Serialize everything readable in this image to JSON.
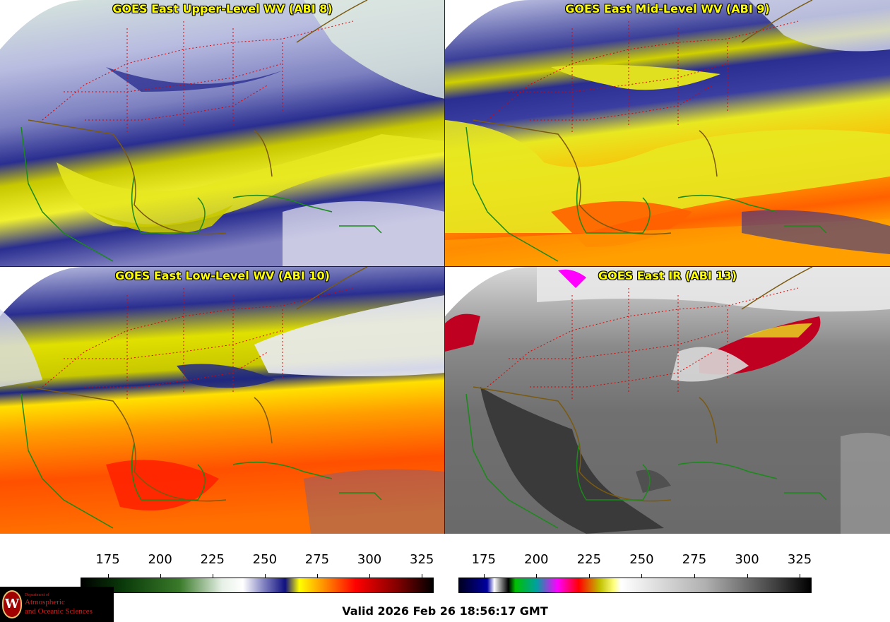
{
  "panels": [
    {
      "id": "upper",
      "title": "GOES East Upper-Level WV (ABI 8)"
    },
    {
      "id": "mid",
      "title": "GOES East Mid-Level WV (ABI 9)"
    },
    {
      "id": "low",
      "title": "GOES East Low-Level WV (ABI 10)"
    },
    {
      "id": "ir",
      "title": "GOES East IR (ABI 13)"
    }
  ],
  "colorbars": [
    {
      "name": "water-vapor",
      "ticks": [
        "175",
        "200",
        "225",
        "250",
        "275",
        "300",
        "325"
      ],
      "range": [
        162,
        330
      ],
      "stops": [
        [
          "0",
          "#000000"
        ],
        [
          "0.12",
          "#0a3a0a"
        ],
        [
          "0.28",
          "#3a7a2a"
        ],
        [
          "0.40",
          "#e6f0e6"
        ],
        [
          "0.46",
          "#ffffff"
        ],
        [
          "0.52",
          "#8080c0"
        ],
        [
          "0.58",
          "#101080"
        ],
        [
          "0.62",
          "#ffff00"
        ],
        [
          "0.70",
          "#ff8000"
        ],
        [
          "0.78",
          "#ff0000"
        ],
        [
          "0.90",
          "#800000"
        ],
        [
          "1",
          "#000000"
        ]
      ]
    },
    {
      "name": "infrared",
      "ticks": [
        "175",
        "200",
        "225",
        "250",
        "275",
        "300",
        "325"
      ],
      "range": [
        163,
        330
      ],
      "stops": [
        [
          "0",
          "#000020"
        ],
        [
          "0.08",
          "#0000a0"
        ],
        [
          "0.10",
          "#ffffff"
        ],
        [
          "0.14",
          "#000000"
        ],
        [
          "0.16",
          "#00c000"
        ],
        [
          "0.22",
          "#00a0a0"
        ],
        [
          "0.28",
          "#ff00ff"
        ],
        [
          "0.34",
          "#ff0000"
        ],
        [
          "0.40",
          "#c0c000"
        ],
        [
          "0.44",
          "#ffff80"
        ],
        [
          "0.46",
          "#ffffff"
        ],
        [
          "0.70",
          "#b0b0b0"
        ],
        [
          "0.90",
          "#404040"
        ],
        [
          "1",
          "#000000"
        ]
      ]
    }
  ],
  "footer": {
    "valid_text": "Valid 2026 Feb 26 18:56:17 GMT"
  },
  "logo": {
    "dept": "Department of",
    "line1": "Atmospheric",
    "line2": "and Oceanic Sciences",
    "seal": "W"
  }
}
